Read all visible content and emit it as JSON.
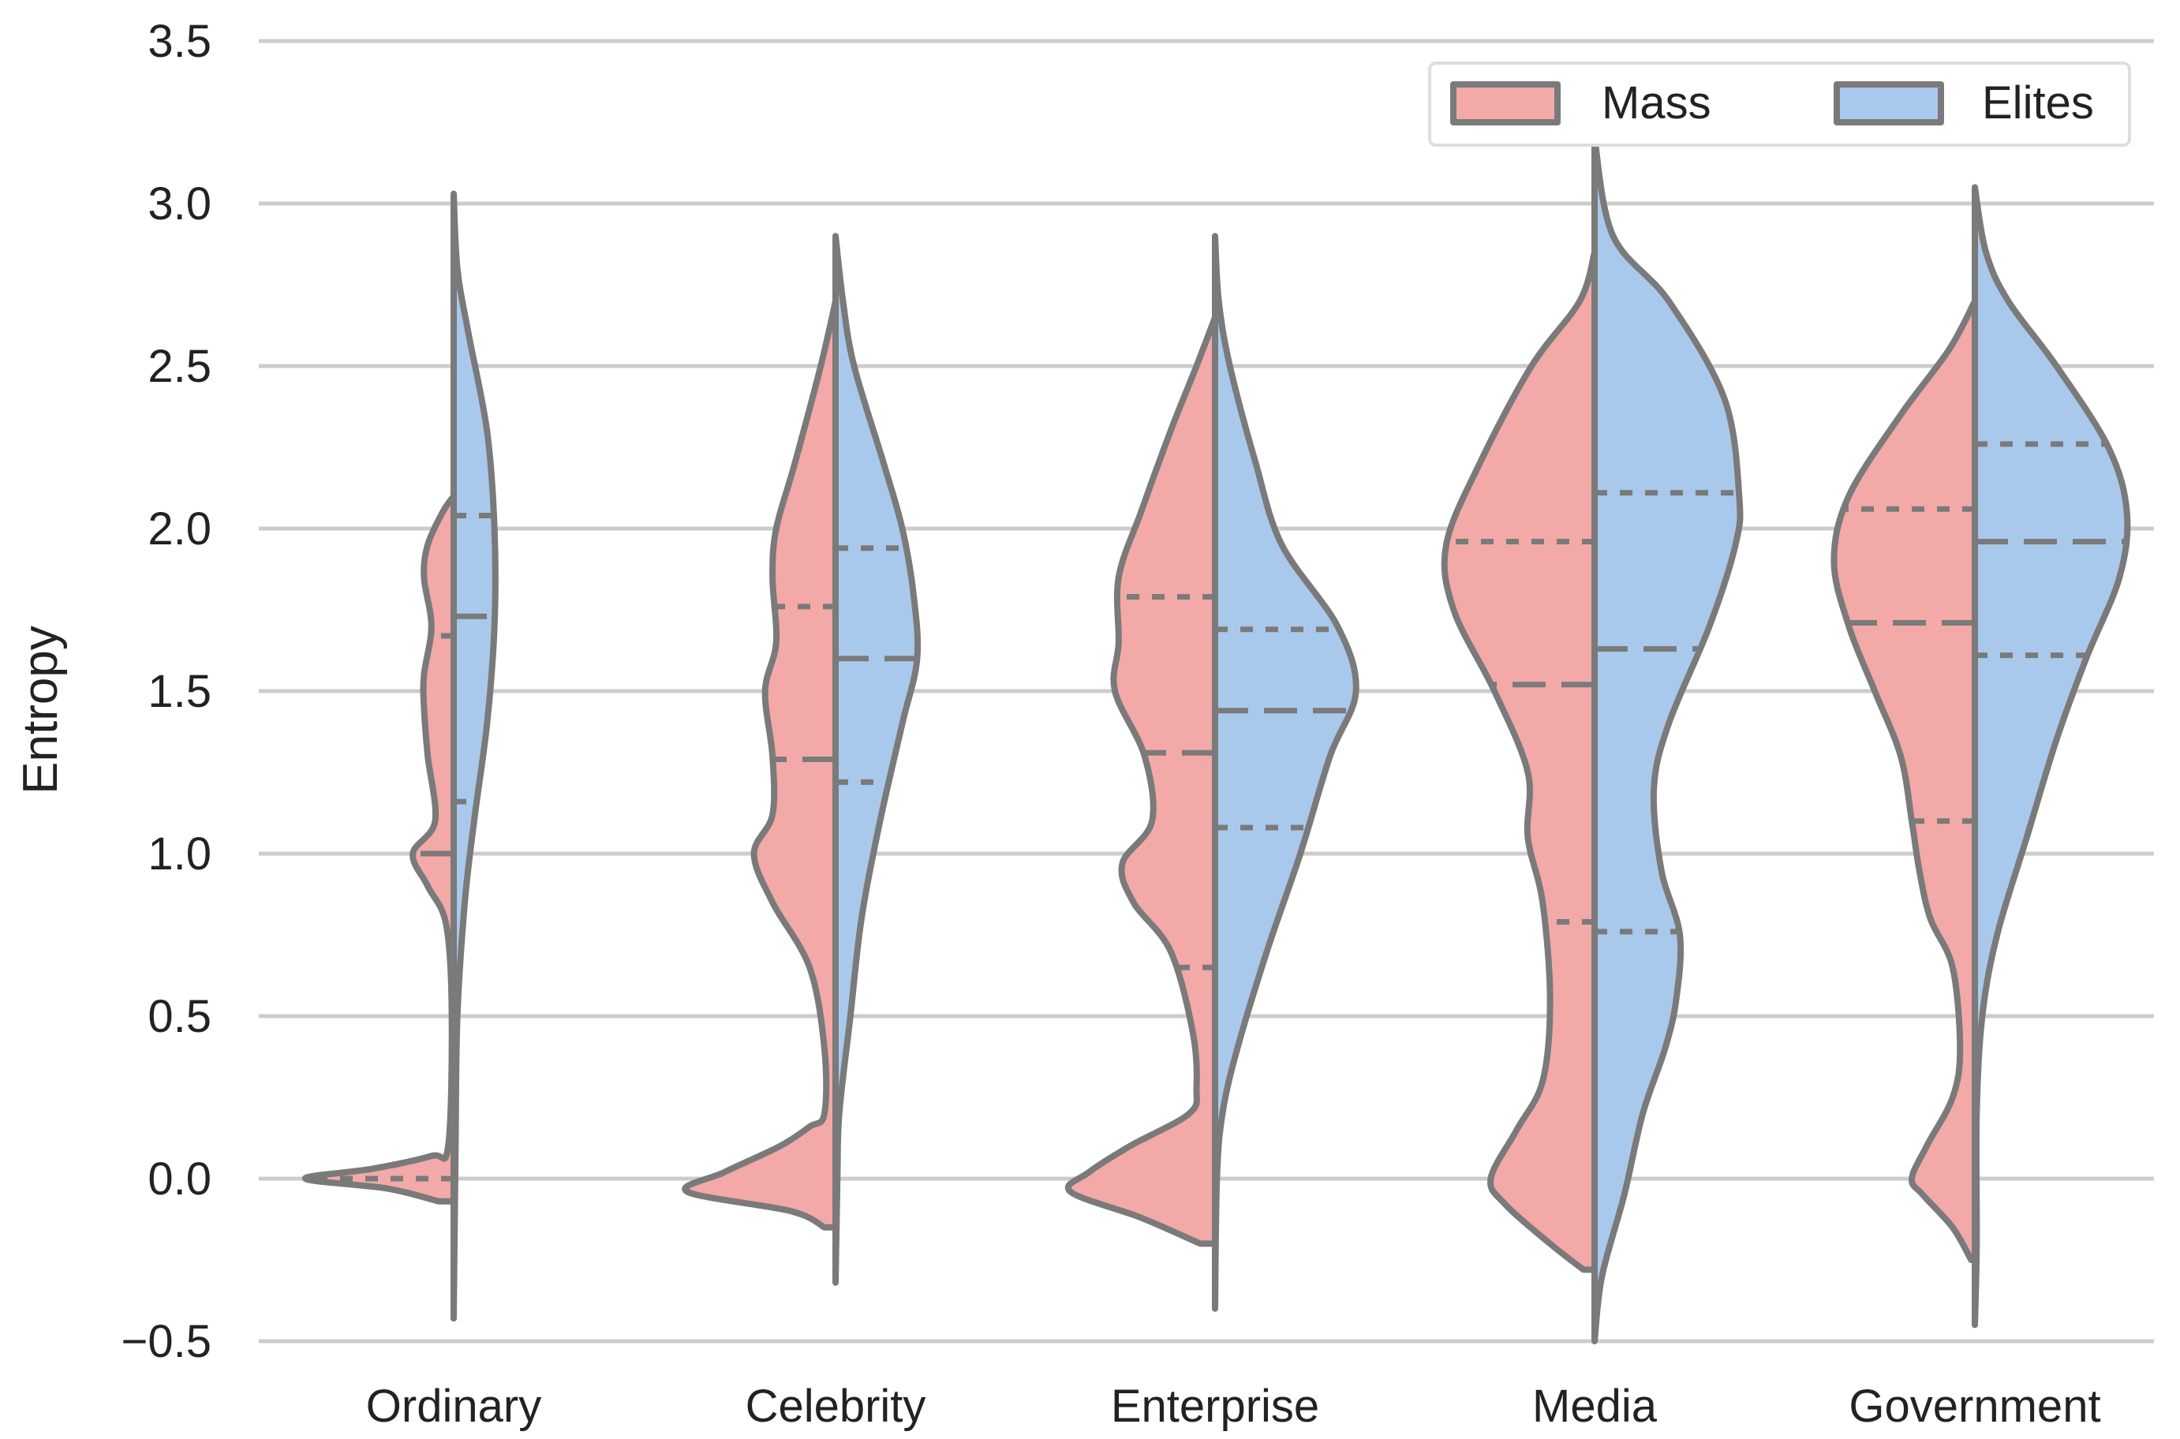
{
  "chart_data": {
    "type": "violin",
    "title": "",
    "xlabel": "",
    "ylabel": "Entropy",
    "ylim": [
      -0.5,
      3.5
    ],
    "yticks": [
      "−0.5",
      "0.0",
      "0.5",
      "1.0",
      "1.5",
      "2.0",
      "2.5",
      "3.0",
      "3.5"
    ],
    "grid": "horizontal",
    "legend_position": "top-right",
    "categories": [
      "Ordinary",
      "Celebrity",
      "Enterprise",
      "Media",
      "Government"
    ],
    "series": [
      {
        "name": "Mass",
        "color": "#f2a9a7",
        "side": "left"
      },
      {
        "name": "Elites",
        "color": "#a9c9ec",
        "side": "right"
      }
    ],
    "violins": [
      {
        "category": "Ordinary",
        "mass": {
          "extent": [
            -0.07,
            2.1
          ],
          "profile": [
            [
              -0.07,
              0.04
            ],
            [
              -0.03,
              0.18
            ],
            [
              0.0,
              0.4
            ],
            [
              0.03,
              0.22
            ],
            [
              0.07,
              0.06
            ],
            [
              0.1,
              0.015
            ],
            [
              0.5,
              0.005
            ],
            [
              0.78,
              0.02
            ],
            [
              0.9,
              0.07
            ],
            [
              1.0,
              0.11
            ],
            [
              1.1,
              0.05
            ],
            [
              1.3,
              0.07
            ],
            [
              1.45,
              0.08
            ],
            [
              1.55,
              0.08
            ],
            [
              1.7,
              0.06
            ],
            [
              1.85,
              0.08
            ],
            [
              1.95,
              0.07
            ],
            [
              2.05,
              0.03
            ],
            [
              2.1,
              0.0
            ]
          ],
          "quartiles": [
            0.0,
            1.0,
            1.67
          ]
        },
        "elites": {
          "extent": [
            -0.43,
            3.03
          ],
          "profile": [
            [
              -0.43,
              0.0
            ],
            [
              0.1,
              0.005
            ],
            [
              0.5,
              0.01
            ],
            [
              0.85,
              0.03
            ],
            [
              1.1,
              0.055
            ],
            [
              1.4,
              0.09
            ],
            [
              1.7,
              0.11
            ],
            [
              2.0,
              0.11
            ],
            [
              2.3,
              0.09
            ],
            [
              2.6,
              0.04
            ],
            [
              2.8,
              0.01
            ],
            [
              3.03,
              0.0
            ]
          ],
          "quartiles": [
            1.16,
            1.73,
            2.04
          ]
        }
      },
      {
        "category": "Celebrity",
        "mass": {
          "extent": [
            -0.15,
            2.7
          ],
          "profile": [
            [
              -0.15,
              0.03
            ],
            [
              -0.1,
              0.12
            ],
            [
              -0.04,
              0.4
            ],
            [
              0.02,
              0.3
            ],
            [
              0.1,
              0.15
            ],
            [
              0.16,
              0.07
            ],
            [
              0.2,
              0.03
            ],
            [
              0.4,
              0.03
            ],
            [
              0.65,
              0.07
            ],
            [
              0.85,
              0.17
            ],
            [
              1.0,
              0.22
            ],
            [
              1.12,
              0.17
            ],
            [
              1.3,
              0.17
            ],
            [
              1.5,
              0.19
            ],
            [
              1.65,
              0.16
            ],
            [
              1.85,
              0.17
            ],
            [
              2.0,
              0.16
            ],
            [
              2.2,
              0.11
            ],
            [
              2.5,
              0.04
            ],
            [
              2.7,
              0.0
            ]
          ],
          "quartiles": [
            1.29,
            1.76
          ]
        },
        "elites": {
          "extent": [
            -0.32,
            2.9
          ],
          "profile": [
            [
              -0.32,
              0.0
            ],
            [
              0.0,
              0.005
            ],
            [
              0.2,
              0.01
            ],
            [
              0.5,
              0.04
            ],
            [
              0.8,
              0.07
            ],
            [
              1.1,
              0.12
            ],
            [
              1.4,
              0.18
            ],
            [
              1.6,
              0.22
            ],
            [
              1.8,
              0.21
            ],
            [
              2.0,
              0.18
            ],
            [
              2.2,
              0.13
            ],
            [
              2.5,
              0.05
            ],
            [
              2.7,
              0.02
            ],
            [
              2.9,
              0.0
            ]
          ],
          "quartiles": [
            1.22,
            1.6,
            1.94
          ]
        }
      },
      {
        "category": "Enterprise",
        "mass": {
          "extent": [
            -0.2,
            2.65
          ],
          "profile": [
            [
              -0.2,
              0.04
            ],
            [
              -0.12,
              0.2
            ],
            [
              -0.04,
              0.39
            ],
            [
              0.02,
              0.34
            ],
            [
              0.1,
              0.23
            ],
            [
              0.2,
              0.07
            ],
            [
              0.28,
              0.05
            ],
            [
              0.45,
              0.06
            ],
            [
              0.7,
              0.12
            ],
            [
              0.85,
              0.22
            ],
            [
              0.97,
              0.25
            ],
            [
              1.1,
              0.17
            ],
            [
              1.3,
              0.19
            ],
            [
              1.5,
              0.27
            ],
            [
              1.65,
              0.26
            ],
            [
              1.85,
              0.26
            ],
            [
              2.05,
              0.2
            ],
            [
              2.3,
              0.12
            ],
            [
              2.5,
              0.05
            ],
            [
              2.65,
              0.0
            ]
          ],
          "quartiles": [
            0.65,
            1.31,
            1.79
          ]
        },
        "elites": {
          "extent": [
            -0.4,
            2.9
          ],
          "profile": [
            [
              -0.4,
              0.0
            ],
            [
              0.0,
              0.005
            ],
            [
              0.2,
              0.02
            ],
            [
              0.4,
              0.06
            ],
            [
              0.7,
              0.14
            ],
            [
              1.0,
              0.23
            ],
            [
              1.3,
              0.31
            ],
            [
              1.5,
              0.38
            ],
            [
              1.7,
              0.33
            ],
            [
              1.95,
              0.18
            ],
            [
              2.2,
              0.11
            ],
            [
              2.5,
              0.04
            ],
            [
              2.7,
              0.01
            ],
            [
              2.9,
              0.0
            ]
          ],
          "quartiles": [
            1.08,
            1.44,
            1.69
          ]
        }
      },
      {
        "category": "Media",
        "mass": {
          "extent": [
            -0.28,
            2.85
          ],
          "profile": [
            [
              -0.28,
              0.03
            ],
            [
              -0.2,
              0.12
            ],
            [
              -0.08,
              0.24
            ],
            [
              0.0,
              0.28
            ],
            [
              0.15,
              0.21
            ],
            [
              0.3,
              0.14
            ],
            [
              0.55,
              0.12
            ],
            [
              0.85,
              0.14
            ],
            [
              1.05,
              0.18
            ],
            [
              1.25,
              0.18
            ],
            [
              1.5,
              0.27
            ],
            [
              1.75,
              0.38
            ],
            [
              1.95,
              0.4
            ],
            [
              2.2,
              0.31
            ],
            [
              2.5,
              0.17
            ],
            [
              2.7,
              0.04
            ],
            [
              2.85,
              0.0
            ]
          ],
          "quartiles": [
            0.79,
            1.52,
            1.96
          ]
        },
        "elites": {
          "extent": [
            -0.5,
            3.2
          ],
          "profile": [
            [
              -0.5,
              0.0
            ],
            [
              -0.3,
              0.02
            ],
            [
              -0.05,
              0.08
            ],
            [
              0.2,
              0.13
            ],
            [
              0.4,
              0.19
            ],
            [
              0.55,
              0.22
            ],
            [
              0.75,
              0.23
            ],
            [
              0.95,
              0.18
            ],
            [
              1.2,
              0.16
            ],
            [
              1.4,
              0.2
            ],
            [
              1.7,
              0.31
            ],
            [
              1.95,
              0.38
            ],
            [
              2.1,
              0.39
            ],
            [
              2.4,
              0.35
            ],
            [
              2.7,
              0.2
            ],
            [
              2.9,
              0.05
            ],
            [
              3.2,
              0.0
            ]
          ],
          "quartiles": [
            0.76,
            1.63,
            2.11
          ]
        }
      },
      {
        "category": "Government",
        "mass": {
          "extent": [
            -0.25,
            2.7
          ],
          "profile": [
            [
              -0.25,
              0.01
            ],
            [
              -0.15,
              0.06
            ],
            [
              -0.05,
              0.14
            ],
            [
              0.0,
              0.17
            ],
            [
              0.1,
              0.13
            ],
            [
              0.25,
              0.06
            ],
            [
              0.4,
              0.04
            ],
            [
              0.65,
              0.06
            ],
            [
              0.8,
              0.12
            ],
            [
              0.95,
              0.15
            ],
            [
              1.1,
              0.17
            ],
            [
              1.3,
              0.2
            ],
            [
              1.5,
              0.27
            ],
            [
              1.7,
              0.34
            ],
            [
              1.9,
              0.38
            ],
            [
              2.1,
              0.34
            ],
            [
              2.35,
              0.2
            ],
            [
              2.55,
              0.07
            ],
            [
              2.7,
              0.0
            ]
          ],
          "quartiles": [
            1.1,
            1.71,
            2.06
          ]
        },
        "elites": {
          "extent": [
            -0.45,
            3.05
          ],
          "profile": [
            [
              -0.45,
              0.0
            ],
            [
              -0.2,
              0.005
            ],
            [
              0.2,
              0.005
            ],
            [
              0.5,
              0.02
            ],
            [
              0.75,
              0.06
            ],
            [
              1.05,
              0.14
            ],
            [
              1.35,
              0.22
            ],
            [
              1.6,
              0.3
            ],
            [
              1.85,
              0.39
            ],
            [
              2.05,
              0.41
            ],
            [
              2.25,
              0.36
            ],
            [
              2.5,
              0.22
            ],
            [
              2.7,
              0.09
            ],
            [
              2.85,
              0.03
            ],
            [
              3.05,
              0.0
            ]
          ],
          "quartiles": [
            1.61,
            1.96,
            2.26
          ]
        }
      }
    ]
  }
}
